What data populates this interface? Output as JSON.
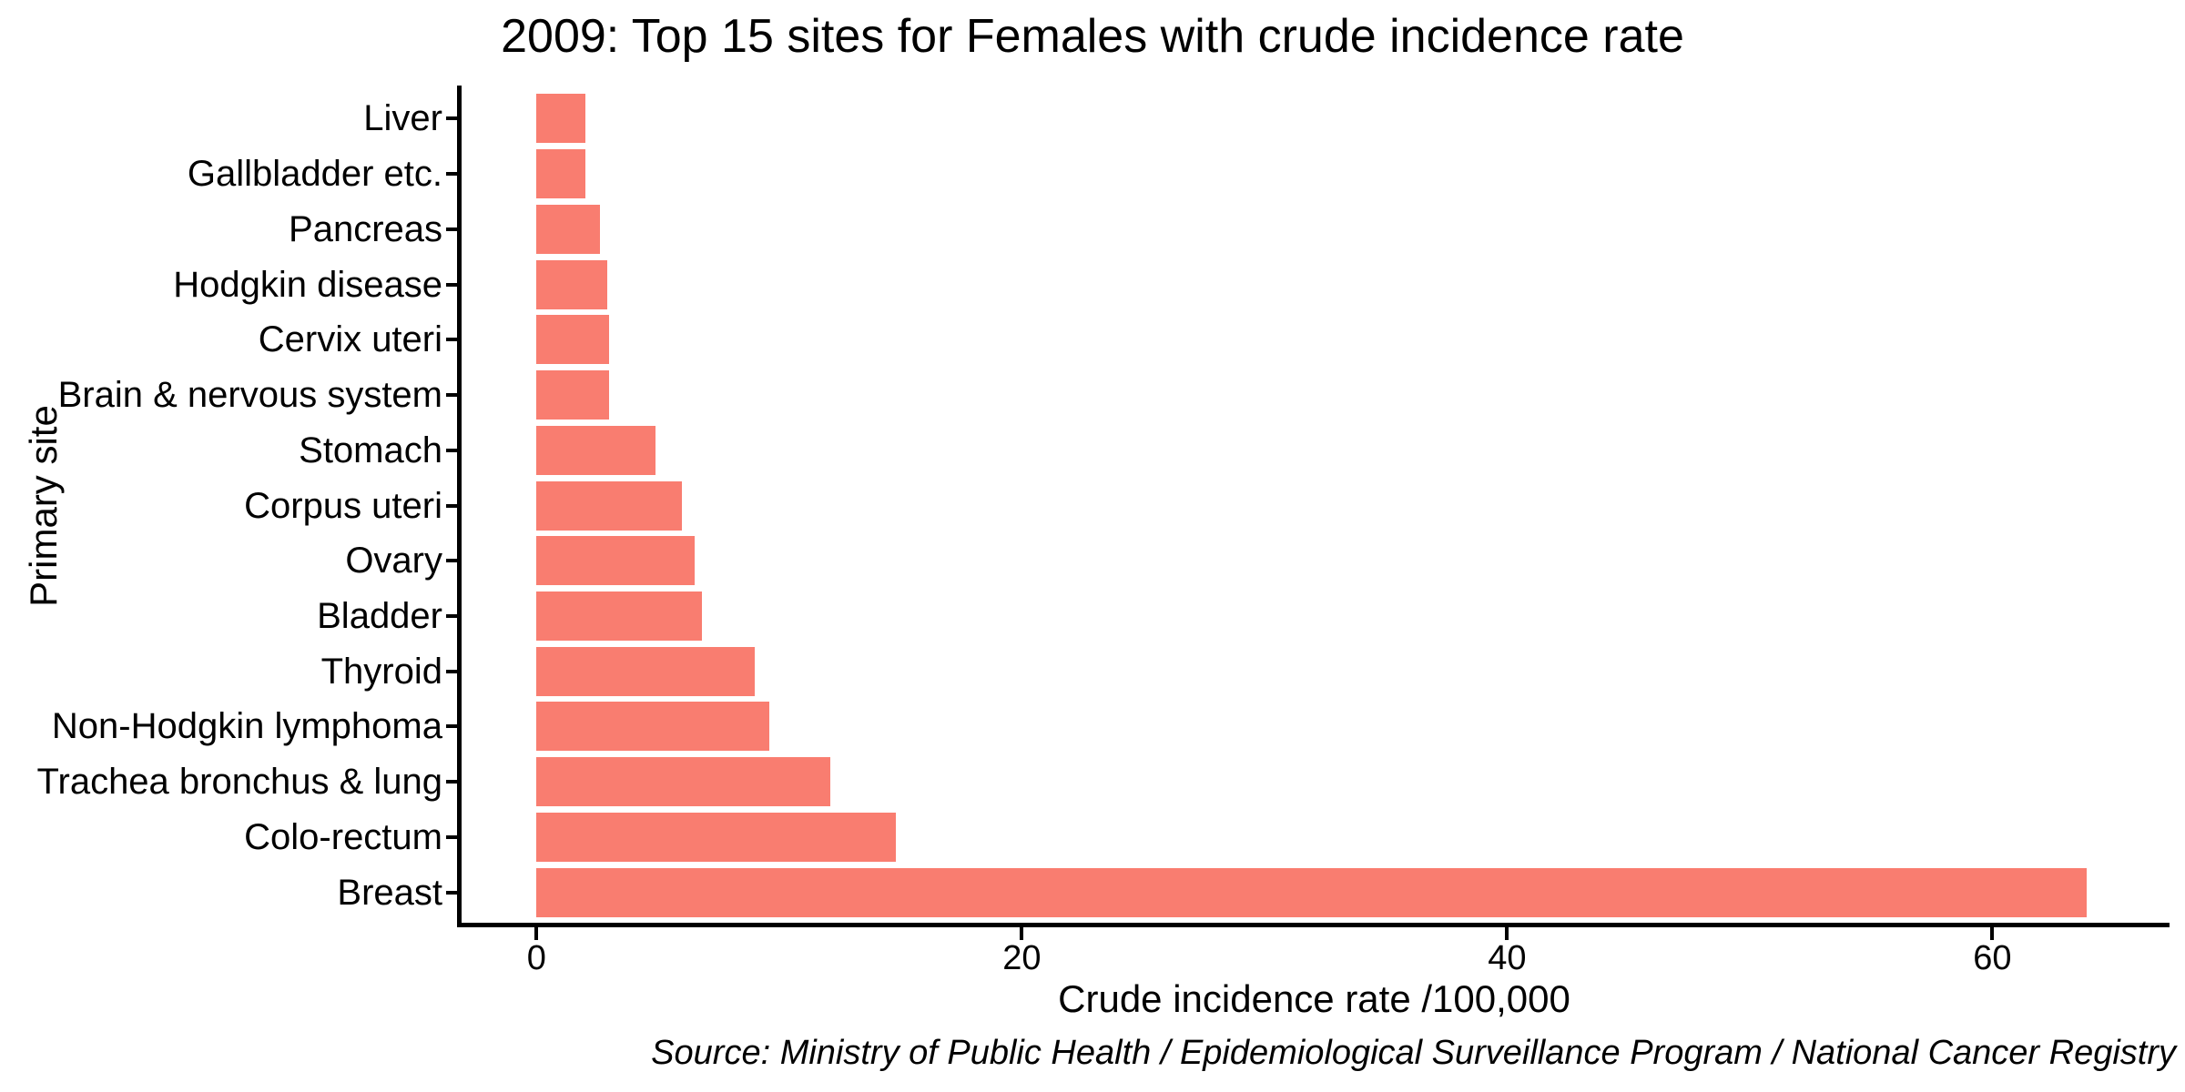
{
  "colors": {
    "bar_fill": "#F97D70",
    "axis": "#000000",
    "text": "#000000",
    "background": "#FFFFFF"
  },
  "chart_data": {
    "type": "bar",
    "orientation": "horizontal",
    "title": "2009: Top 15 sites for Females with crude incidence rate",
    "xlabel": "Crude incidence rate /100,000",
    "ylabel": "Primary site",
    "source_note": "Source: Ministry of Public Health / Epidemiological Surveillance Program / National Cancer Registry",
    "categories": [
      "Liver",
      "Gallbladder etc.",
      "Pancreas",
      "Hodgkin disease",
      "Cervix uteri",
      "Brain & nervous system",
      "Stomach",
      "Corpus uteri",
      "Ovary",
      "Bladder",
      "Thyroid",
      "Non-Hodgkin lymphoma",
      "Trachea bronchus & lung",
      "Colo-rectum",
      "Breast"
    ],
    "values": [
      2.0,
      2.0,
      2.6,
      2.9,
      3.0,
      3.0,
      4.9,
      6.0,
      6.5,
      6.8,
      9.0,
      9.6,
      12.1,
      14.8,
      63.9
    ],
    "category_order": "smallest value at top, largest (Breast) at bottom",
    "x_ticks": [
      0,
      20,
      40,
      60
    ],
    "xlim": [
      -3.2,
      67.3
    ],
    "grid": false,
    "legend": false
  }
}
